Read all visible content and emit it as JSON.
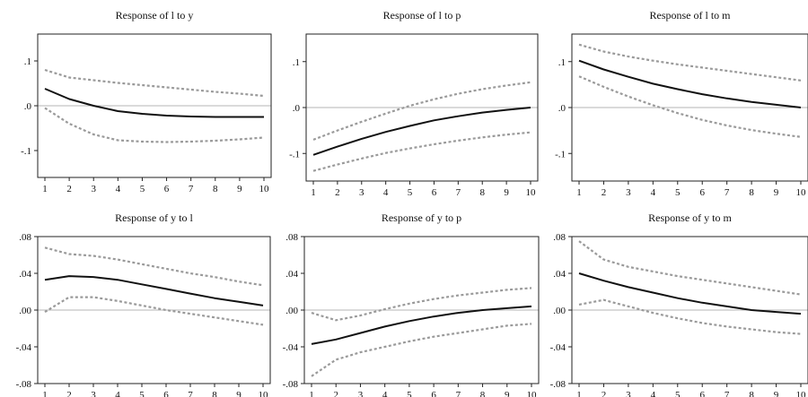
{
  "chart_data": [
    {
      "type": "line",
      "title": "Response of l to y",
      "x": [
        1,
        2,
        3,
        4,
        5,
        6,
        7,
        8,
        9,
        10
      ],
      "ylim": [
        -0.16,
        0.16
      ],
      "yticks": [
        0.1,
        0.0,
        -0.1
      ],
      "ytick_labels": [
        ".1",
        ".0",
        "-.1"
      ],
      "grid": false,
      "series": [
        {
          "role": "response",
          "style": "solid",
          "values": [
            0.038,
            0.015,
            0.0,
            -0.012,
            -0.018,
            -0.022,
            -0.024,
            -0.025,
            -0.025,
            -0.025
          ]
        },
        {
          "role": "upper",
          "style": "dashed",
          "values": [
            0.08,
            0.063,
            0.057,
            0.051,
            0.046,
            0.041,
            0.036,
            0.031,
            0.027,
            0.022
          ]
        },
        {
          "role": "lower",
          "style": "dashed",
          "values": [
            -0.005,
            -0.04,
            -0.064,
            -0.077,
            -0.08,
            -0.081,
            -0.08,
            -0.078,
            -0.075,
            -0.071
          ]
        }
      ]
    },
    {
      "type": "line",
      "title": "Response of l to p",
      "x": [
        1,
        2,
        3,
        4,
        5,
        6,
        7,
        8,
        9,
        10
      ],
      "ylim": [
        -0.16,
        0.16
      ],
      "yticks": [
        0.1,
        0.0,
        -0.1
      ],
      "ytick_labels": [
        ".1",
        ".0",
        "-.1"
      ],
      "grid": false,
      "series": [
        {
          "role": "response",
          "style": "solid",
          "values": [
            -0.103,
            -0.085,
            -0.068,
            -0.053,
            -0.04,
            -0.028,
            -0.019,
            -0.011,
            -0.005,
            0.0
          ]
        },
        {
          "role": "upper",
          "style": "dashed",
          "values": [
            -0.07,
            -0.05,
            -0.031,
            -0.013,
            0.004,
            0.018,
            0.03,
            0.04,
            0.048,
            0.055
          ]
        },
        {
          "role": "lower",
          "style": "dashed",
          "values": [
            -0.138,
            -0.124,
            -0.111,
            -0.099,
            -0.089,
            -0.08,
            -0.072,
            -0.065,
            -0.059,
            -0.054
          ]
        }
      ]
    },
    {
      "type": "line",
      "title": "Response of l to m",
      "x": [
        1,
        2,
        3,
        4,
        5,
        6,
        7,
        8,
        9,
        10
      ],
      "ylim": [
        -0.16,
        0.16
      ],
      "yticks": [
        0.1,
        0.0,
        -0.1
      ],
      "ytick_labels": [
        ".1",
        ".0",
        "-.1"
      ],
      "grid": false,
      "series": [
        {
          "role": "response",
          "style": "solid",
          "values": [
            0.102,
            0.083,
            0.067,
            0.052,
            0.04,
            0.029,
            0.02,
            0.012,
            0.006,
            0.0
          ]
        },
        {
          "role": "upper",
          "style": "dashed",
          "values": [
            0.137,
            0.122,
            0.111,
            0.102,
            0.094,
            0.087,
            0.08,
            0.073,
            0.066,
            0.059
          ]
        },
        {
          "role": "lower",
          "style": "dashed",
          "values": [
            0.068,
            0.045,
            0.024,
            0.005,
            -0.012,
            -0.027,
            -0.039,
            -0.049,
            -0.057,
            -0.064
          ]
        }
      ]
    },
    {
      "type": "line",
      "title": "Response of y to l",
      "x": [
        1,
        2,
        3,
        4,
        5,
        6,
        7,
        8,
        9,
        10
      ],
      "ylim": [
        -0.08,
        0.08
      ],
      "yticks": [
        0.08,
        0.04,
        0.0,
        -0.04,
        -0.08
      ],
      "ytick_labels": [
        ".08",
        ".04",
        ".00",
        "-.04",
        "-.08"
      ],
      "grid": false,
      "series": [
        {
          "role": "response",
          "style": "solid",
          "values": [
            0.033,
            0.037,
            0.036,
            0.033,
            0.028,
            0.023,
            0.018,
            0.013,
            0.009,
            0.005
          ]
        },
        {
          "role": "upper",
          "style": "dashed",
          "values": [
            0.068,
            0.061,
            0.059,
            0.055,
            0.05,
            0.045,
            0.04,
            0.036,
            0.031,
            0.027
          ]
        },
        {
          "role": "lower",
          "style": "dashed",
          "values": [
            -0.002,
            0.014,
            0.014,
            0.01,
            0.005,
            0.0,
            -0.004,
            -0.008,
            -0.012,
            -0.016
          ]
        }
      ]
    },
    {
      "type": "line",
      "title": "Response of y to p",
      "x": [
        1,
        2,
        3,
        4,
        5,
        6,
        7,
        8,
        9,
        10
      ],
      "ylim": [
        -0.08,
        0.08
      ],
      "yticks": [
        0.08,
        0.04,
        0.0,
        -0.04,
        -0.08
      ],
      "ytick_labels": [
        ".08",
        ".04",
        ".00",
        "-.04",
        "-.08"
      ],
      "grid": false,
      "series": [
        {
          "role": "response",
          "style": "solid",
          "values": [
            -0.037,
            -0.032,
            -0.025,
            -0.018,
            -0.012,
            -0.007,
            -0.003,
            0.0,
            0.002,
            0.004
          ]
        },
        {
          "role": "upper",
          "style": "dashed",
          "values": [
            -0.003,
            -0.011,
            -0.006,
            0.001,
            0.007,
            0.012,
            0.016,
            0.019,
            0.022,
            0.024
          ]
        },
        {
          "role": "lower",
          "style": "dashed",
          "values": [
            -0.072,
            -0.054,
            -0.046,
            -0.04,
            -0.034,
            -0.029,
            -0.025,
            -0.021,
            -0.017,
            -0.015
          ]
        }
      ]
    },
    {
      "type": "line",
      "title": "Response of y to m",
      "x": [
        1,
        2,
        3,
        4,
        5,
        6,
        7,
        8,
        9,
        10
      ],
      "ylim": [
        -0.08,
        0.08
      ],
      "yticks": [
        0.08,
        0.04,
        0.0,
        -0.04,
        -0.08
      ],
      "ytick_labels": [
        ".08",
        ".04",
        ".00",
        "-.04",
        "-.08"
      ],
      "grid": false,
      "series": [
        {
          "role": "response",
          "style": "solid",
          "values": [
            0.04,
            0.032,
            0.025,
            0.019,
            0.013,
            0.008,
            0.004,
            0.0,
            -0.002,
            -0.004
          ]
        },
        {
          "role": "upper",
          "style": "dashed",
          "values": [
            0.075,
            0.055,
            0.047,
            0.042,
            0.037,
            0.033,
            0.029,
            0.025,
            0.021,
            0.017
          ]
        },
        {
          "role": "lower",
          "style": "dashed",
          "values": [
            0.006,
            0.011,
            0.004,
            -0.003,
            -0.009,
            -0.014,
            -0.018,
            -0.021,
            -0.024,
            -0.026
          ]
        }
      ]
    }
  ],
  "colors": {
    "response": "#111111",
    "band": "#9a9a9a",
    "zero_line": "#b4b4b4",
    "frame": "#222222"
  }
}
